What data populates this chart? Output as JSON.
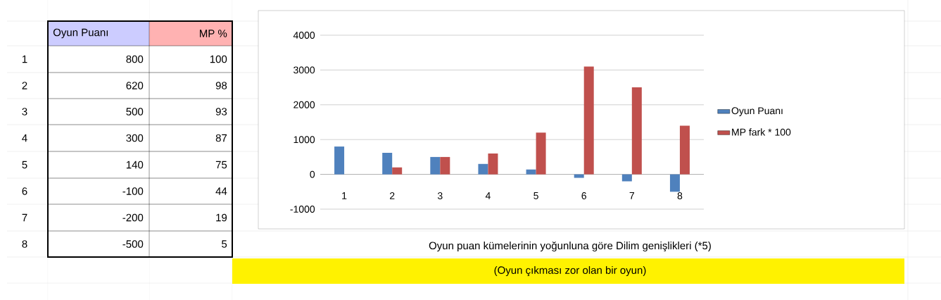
{
  "chart_data": {
    "type": "bar",
    "title": "Oyun puan kümelerinin yoğunluna göre Dilim genişlikleri (*5)",
    "subtitle": "(Oyun çıkması zor olan bir oyun)",
    "categories": [
      "1",
      "2",
      "3",
      "4",
      "5",
      "6",
      "7",
      "8"
    ],
    "series": [
      {
        "name": "Oyun Puanı",
        "color": "#4f81bd",
        "values": [
          800,
          620,
          500,
          300,
          140,
          -100,
          -200,
          -500
        ]
      },
      {
        "name": "MP fark * 100",
        "color": "#c0504d",
        "values": [
          0,
          200,
          500,
          600,
          1200,
          3100,
          2500,
          1400
        ]
      }
    ],
    "annotations": [
      "800",
      "620",
      "500",
      "300",
      "140",
      "-100",
      "-200",
      "-500",
      "MP %",
      "100",
      "98",
      "93",
      "87",
      "75",
      "44",
      "19",
      "5"
    ],
    "ylim": [
      -1000,
      4000
    ],
    "yticks": [
      -1000,
      0,
      1000,
      2000,
      3000,
      4000
    ],
    "grid": "y",
    "legend": "right"
  }
}
